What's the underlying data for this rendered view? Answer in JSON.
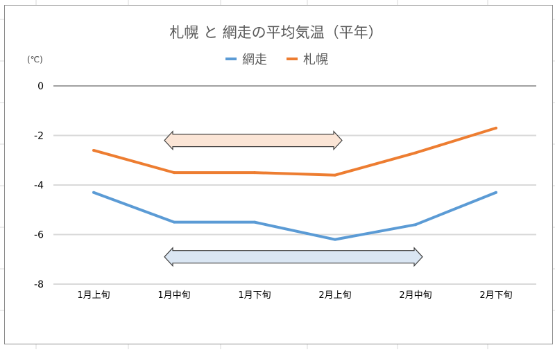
{
  "chart_data": {
    "type": "line",
    "title": "札幌 と 網走の平均気温（平年）",
    "ylabel": "(℃)",
    "xlabel": "",
    "categories": [
      "1月上旬",
      "1月中旬",
      "1月下旬",
      "2月上旬",
      "2月中旬",
      "2月下旬"
    ],
    "series": [
      {
        "name": "網走",
        "color": "#5b9bd5",
        "values": [
          -4.3,
          -5.5,
          -5.5,
          -6.2,
          -5.6,
          -4.3
        ]
      },
      {
        "name": "札幌",
        "color": "#ed7d31",
        "values": [
          -2.6,
          -3.5,
          -3.5,
          -3.6,
          -2.7,
          -1.7
        ]
      }
    ],
    "ylim": [
      -8,
      0
    ],
    "yticks": [
      0,
      -2,
      -4,
      -6,
      -8
    ],
    "ytick_labels": [
      "0",
      "-2",
      "-4",
      "-6",
      "-8"
    ],
    "grid": true,
    "legend": "top-center",
    "annotations": [
      {
        "type": "double-arrow",
        "from_category": 1,
        "to_category": 3,
        "y": -2.2,
        "fill": "#fbe5d6"
      },
      {
        "type": "double-arrow",
        "from_category": 1,
        "to_category": 4,
        "y": -6.9,
        "fill": "#dae6f3"
      }
    ]
  }
}
